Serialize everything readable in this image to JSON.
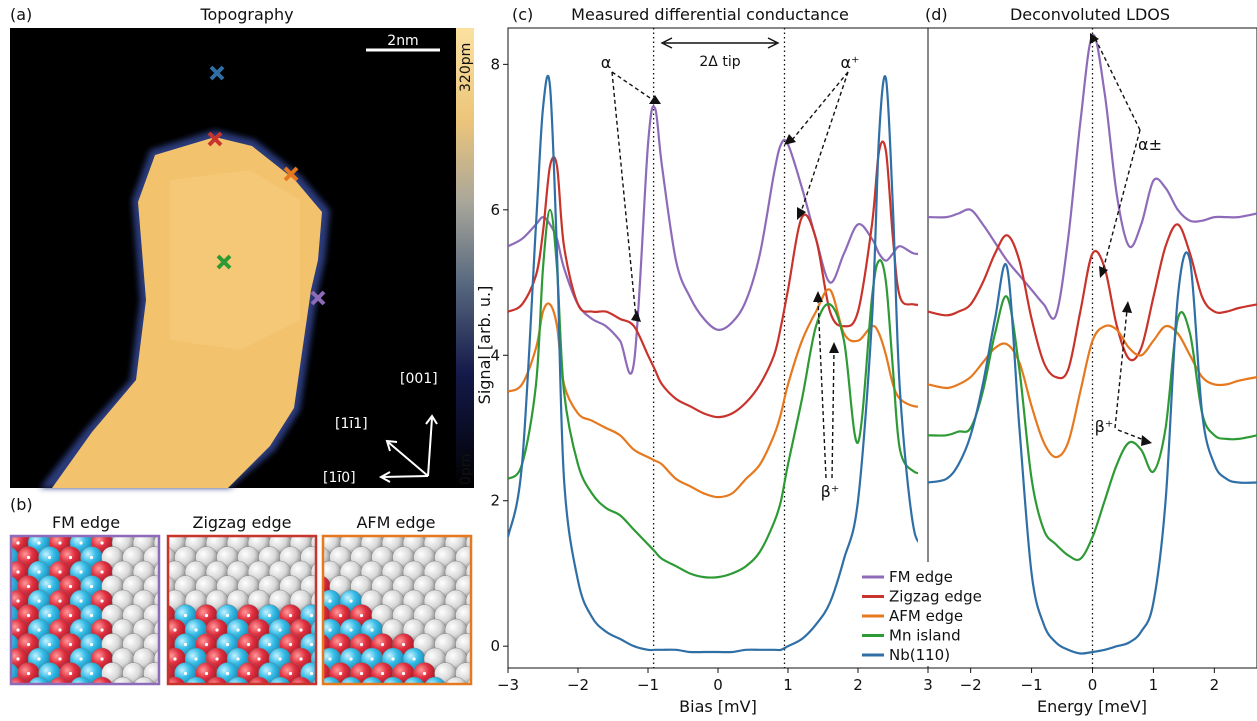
{
  "panels": {
    "a": {
      "letter": "(a)",
      "title": "Topography",
      "scalebar_label": "2nm",
      "colorbar_max": "320pm",
      "colorbar_min": "0pm",
      "directions": [
        "[001]",
        "[1ī1]",
        "[1ī0]"
      ],
      "markers": [
        {
          "name": "marker-nb110",
          "color": "#2f6fa6"
        },
        {
          "name": "marker-zigzag",
          "color": "#c8332c"
        },
        {
          "name": "marker-afm",
          "color": "#e6781e"
        },
        {
          "name": "marker-mn-island",
          "color": "#2e9a35"
        },
        {
          "name": "marker-fm",
          "color": "#8e6bb9"
        }
      ]
    },
    "b": {
      "letter": "(b)",
      "edges": [
        {
          "label": "FM edge",
          "frame": "#8e6bb9"
        },
        {
          "label": "Zigzag edge",
          "frame": "#c8332c"
        },
        {
          "label": "AFM edge",
          "frame": "#e6781e"
        }
      ]
    },
    "c": {
      "letter": "(c)",
      "title": "Measured differential conductance"
    },
    "d": {
      "letter": "(d)",
      "title": "Deconvoluted LDOS"
    }
  },
  "annotations": {
    "gap": "2Δ tip",
    "alpha": "α",
    "alpha_plus": "α⁺",
    "alpha_pm": "α±",
    "beta_plus": "β⁺",
    "beta_plus_d": "β⁺"
  },
  "chart_data": [
    {
      "type": "line",
      "panel": "c",
      "title": "Measured differential conductance",
      "xlabel": "Bias [mV]",
      "ylabel": "Signal [arb. u.]",
      "xlim": [
        -3,
        3
      ],
      "ylim": [
        -0.3,
        8.5
      ],
      "x_ticks": [
        -3,
        -2,
        -1,
        0,
        1,
        2,
        3
      ],
      "y_ticks": [
        0,
        2,
        4,
        6,
        8
      ],
      "x": [
        -3.0,
        -2.8,
        -2.6,
        -2.5,
        -2.4,
        -2.3,
        -2.2,
        -2.0,
        -1.8,
        -1.6,
        -1.4,
        -1.2,
        -1.0,
        -0.9,
        -0.8,
        -0.6,
        -0.4,
        -0.2,
        0.0,
        0.2,
        0.4,
        0.6,
        0.8,
        0.9,
        1.0,
        1.2,
        1.4,
        1.6,
        1.8,
        2.0,
        2.2,
        2.3,
        2.4,
        2.5,
        2.6,
        2.8,
        3.0
      ],
      "series": [
        {
          "name": "FM edge",
          "color": "#8e6bb9",
          "values": [
            5.5,
            5.6,
            5.8,
            5.9,
            5.8,
            5.6,
            5.2,
            4.7,
            4.5,
            4.4,
            4.2,
            3.9,
            6.9,
            7.4,
            6.6,
            5.3,
            4.8,
            4.5,
            4.35,
            4.45,
            4.75,
            5.4,
            6.5,
            6.9,
            6.9,
            6.3,
            5.6,
            5.0,
            5.4,
            5.8,
            5.6,
            5.4,
            5.3,
            5.4,
            5.5,
            5.4,
            5.4
          ]
        },
        {
          "name": "Zigzag edge",
          "color": "#c8332c",
          "values": [
            4.6,
            4.7,
            5.1,
            5.7,
            6.6,
            6.6,
            5.5,
            4.7,
            4.6,
            4.6,
            4.5,
            4.4,
            4.0,
            3.8,
            3.6,
            3.4,
            3.3,
            3.2,
            3.15,
            3.2,
            3.35,
            3.6,
            4.0,
            4.4,
            4.9,
            5.9,
            5.6,
            4.6,
            4.4,
            4.6,
            5.8,
            6.8,
            6.8,
            5.6,
            4.8,
            4.7,
            4.7
          ]
        },
        {
          "name": "AFM edge",
          "color": "#e6781e",
          "values": [
            3.5,
            3.6,
            4.1,
            4.6,
            4.7,
            4.4,
            3.6,
            3.2,
            3.1,
            3.0,
            2.9,
            2.7,
            2.6,
            2.55,
            2.5,
            2.3,
            2.2,
            2.1,
            2.05,
            2.1,
            2.3,
            2.5,
            2.9,
            3.2,
            3.6,
            4.2,
            4.6,
            4.9,
            4.3,
            4.2,
            4.4,
            4.3,
            4.0,
            3.6,
            3.4,
            3.3,
            3.3
          ]
        },
        {
          "name": "Mn island",
          "color": "#2e9a35",
          "values": [
            2.3,
            2.5,
            3.6,
            5.2,
            6.0,
            5.2,
            3.5,
            2.5,
            2.1,
            1.9,
            1.8,
            1.6,
            1.4,
            1.3,
            1.2,
            1.1,
            1.0,
            0.95,
            0.95,
            1.0,
            1.1,
            1.3,
            1.7,
            2.0,
            2.5,
            3.4,
            4.4,
            4.7,
            4.2,
            2.8,
            4.8,
            5.3,
            5.0,
            3.8,
            2.7,
            2.4,
            2.4
          ]
        },
        {
          "name": "Nb(110)",
          "color": "#2f6fa6",
          "values": [
            1.5,
            2.5,
            5.8,
            7.4,
            7.7,
            5.4,
            2.3,
            0.9,
            0.4,
            0.2,
            0.1,
            0.0,
            -0.05,
            -0.05,
            -0.05,
            -0.05,
            -0.08,
            -0.08,
            -0.08,
            -0.08,
            -0.05,
            -0.05,
            -0.05,
            -0.05,
            0.0,
            0.1,
            0.3,
            0.6,
            1.2,
            2.0,
            4.5,
            7.0,
            7.8,
            6.0,
            3.5,
            1.6,
            1.5
          ]
        }
      ],
      "dotted_lines_x": [
        -0.92,
        0.95
      ]
    },
    {
      "type": "line",
      "panel": "d",
      "title": "Deconvoluted LDOS",
      "xlabel": "Energy [meV]",
      "ylabel": "",
      "xlim": [
        -2.7,
        2.7
      ],
      "ylim": [
        -0.3,
        8.5
      ],
      "x_ticks": [
        -2,
        -1,
        0,
        1,
        2
      ],
      "x": [
        -2.7,
        -2.4,
        -2.2,
        -2.0,
        -1.8,
        -1.6,
        -1.4,
        -1.2,
        -1.0,
        -0.8,
        -0.6,
        -0.4,
        -0.2,
        0.0,
        0.2,
        0.4,
        0.6,
        0.8,
        1.0,
        1.2,
        1.4,
        1.6,
        1.8,
        2.0,
        2.2,
        2.4,
        2.7
      ],
      "series": [
        {
          "name": "FM edge",
          "color": "#8e6bb9",
          "values": [
            5.9,
            5.9,
            5.95,
            6.0,
            5.8,
            5.55,
            5.3,
            5.1,
            4.9,
            4.7,
            4.55,
            5.6,
            7.2,
            8.4,
            7.6,
            6.2,
            5.5,
            5.8,
            6.4,
            6.3,
            6.0,
            5.85,
            5.85,
            5.9,
            5.9,
            5.9,
            5.95
          ]
        },
        {
          "name": "Zigzag edge",
          "color": "#c8332c",
          "values": [
            4.6,
            4.55,
            4.6,
            4.7,
            5.0,
            5.4,
            5.65,
            5.3,
            4.5,
            3.9,
            3.7,
            3.8,
            4.6,
            5.4,
            5.2,
            4.4,
            3.95,
            4.1,
            4.8,
            5.5,
            5.8,
            5.4,
            4.8,
            4.6,
            4.6,
            4.65,
            4.7
          ]
        },
        {
          "name": "AFM edge",
          "color": "#e6781e",
          "values": [
            3.6,
            3.55,
            3.6,
            3.7,
            3.9,
            4.1,
            4.15,
            3.9,
            3.3,
            2.8,
            2.6,
            2.8,
            3.5,
            4.2,
            4.4,
            4.35,
            4.1,
            4.0,
            4.2,
            4.4,
            4.3,
            4.0,
            3.7,
            3.6,
            3.6,
            3.65,
            3.7
          ]
        },
        {
          "name": "Mn island",
          "color": "#2e9a35",
          "values": [
            2.9,
            2.9,
            2.95,
            3.0,
            3.5,
            4.3,
            4.8,
            3.8,
            2.3,
            1.6,
            1.4,
            1.25,
            1.2,
            1.5,
            2.0,
            2.5,
            2.8,
            2.7,
            2.4,
            3.0,
            4.5,
            4.3,
            3.2,
            2.9,
            2.85,
            2.85,
            2.9
          ]
        },
        {
          "name": "Nb(110)",
          "color": "#2f6fa6",
          "values": [
            2.25,
            2.3,
            2.5,
            2.9,
            3.6,
            4.5,
            5.2,
            3.0,
            1.0,
            0.3,
            0.05,
            -0.05,
            -0.1,
            -0.08,
            -0.05,
            0.0,
            0.05,
            0.2,
            0.6,
            2.0,
            4.8,
            5.3,
            3.2,
            2.5,
            2.3,
            2.25,
            2.25
          ]
        }
      ],
      "dotted_lines_x": [
        0.0
      ]
    }
  ]
}
